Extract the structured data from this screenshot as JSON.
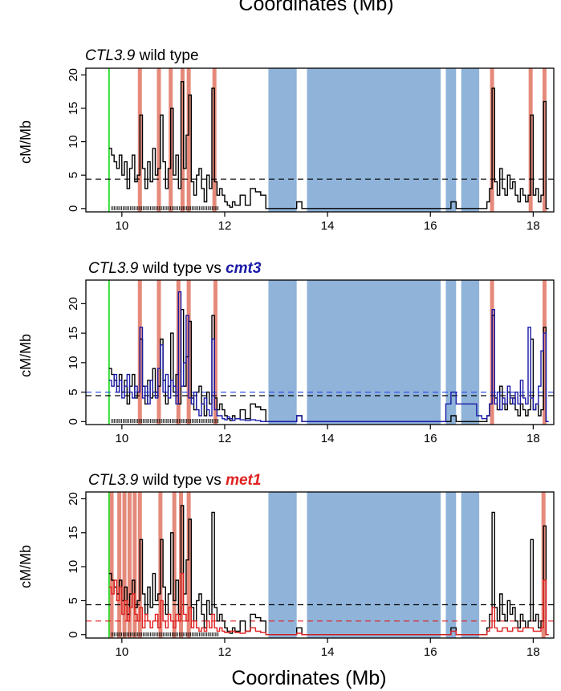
{
  "figure": {
    "top_title": "Coordinates (Mb)",
    "bottom_title": "Coordinates (Mb)"
  },
  "colors": {
    "wt": "#000000",
    "cmt3": "#1a1aa8",
    "met1": "#e02020",
    "hotspot": "#e58a7b",
    "centromere": "#8fb3d9",
    "start_marker": "#33dd33",
    "panel2_mean_line": "#3355ee",
    "panel3_mean_line": "#e02020"
  },
  "chart_data": [
    {
      "type": "line",
      "panel": "wild-type",
      "title_italic": "CTL3.9",
      "title_rest": " wild type",
      "title_variant": "",
      "variant_color_key": "",
      "xlabel": "",
      "ylabel": "cM/Mb",
      "xlim": [
        9.3,
        18.4
      ],
      "ylim": [
        -0.5,
        21
      ],
      "xticks": [
        10,
        12,
        14,
        16,
        18
      ],
      "yticks": [
        0,
        5,
        10,
        15,
        20
      ],
      "start_marker_x": 9.75,
      "mean_lines": [
        {
          "value": 4.4,
          "color_key": "wt"
        }
      ],
      "centromere_blocks": [
        [
          12.85,
          13.4
        ],
        [
          13.6,
          16.2
        ],
        [
          16.3,
          16.5
        ],
        [
          16.6,
          16.95
        ]
      ],
      "hotspots": [
        10.35,
        10.72,
        10.95,
        11.18,
        11.3,
        11.8,
        17.2,
        17.95,
        18.22
      ],
      "series": [
        {
          "name": "wild type",
          "color_key": "wt",
          "x": [
            9.75,
            9.8,
            9.85,
            9.9,
            9.95,
            10.0,
            10.05,
            10.1,
            10.15,
            10.2,
            10.25,
            10.3,
            10.35,
            10.4,
            10.45,
            10.5,
            10.55,
            10.6,
            10.65,
            10.7,
            10.75,
            10.8,
            10.85,
            10.9,
            10.95,
            11.0,
            11.05,
            11.1,
            11.15,
            11.2,
            11.25,
            11.3,
            11.35,
            11.4,
            11.45,
            11.5,
            11.55,
            11.6,
            11.65,
            11.7,
            11.75,
            11.8,
            11.85,
            11.9,
            11.95,
            12.0,
            12.05,
            12.1,
            12.15,
            12.2,
            12.3,
            12.4,
            12.5,
            12.6,
            12.7,
            12.8,
            13.4,
            13.5,
            13.6,
            16.2,
            16.4,
            16.5,
            16.9,
            17.0,
            17.1,
            17.15,
            17.2,
            17.25,
            17.3,
            17.35,
            17.4,
            17.45,
            17.5,
            17.55,
            17.6,
            17.65,
            17.7,
            17.75,
            17.8,
            17.85,
            17.9,
            17.95,
            18.0,
            18.05,
            18.1,
            18.15,
            18.2,
            18.25
          ],
          "values": [
            9,
            8,
            7,
            6,
            8,
            5,
            7,
            3,
            6,
            8,
            4,
            5,
            14,
            6,
            3,
            7,
            4,
            9,
            5,
            6,
            14,
            7,
            3,
            6,
            15,
            5,
            8,
            3,
            19,
            6,
            11,
            17,
            4,
            2,
            5,
            6,
            3,
            1,
            5,
            3,
            18,
            4,
            2,
            3,
            2,
            1,
            0.5,
            0.2,
            1,
            0.5,
            2,
            0.5,
            3,
            2.5,
            2,
            0,
            1,
            0,
            0,
            0,
            1,
            0,
            0,
            0,
            1,
            3,
            18,
            4,
            2,
            6,
            3,
            2,
            5,
            3,
            4,
            2,
            1,
            3,
            2,
            1,
            2,
            14,
            2,
            3,
            1,
            2,
            16,
            0
          ]
        }
      ]
    },
    {
      "type": "line",
      "panel": "wild-type-vs-cmt3",
      "title_italic": "CTL3.9",
      "title_rest": " wild type vs ",
      "title_variant": "cmt3",
      "variant_color_key": "cmt3",
      "xlabel": "",
      "ylabel": "cM/Mb",
      "xlim": [
        9.3,
        18.4
      ],
      "ylim": [
        -0.5,
        24
      ],
      "xticks": [
        10,
        12,
        14,
        16,
        18
      ],
      "yticks": [
        0,
        5,
        10,
        15,
        20
      ],
      "start_marker_x": 9.75,
      "mean_lines": [
        {
          "value": 4.4,
          "color_key": "wt"
        },
        {
          "value": 5.0,
          "color_key": "panel2_mean_line"
        }
      ],
      "centromere_blocks": [
        [
          12.85,
          13.4
        ],
        [
          13.6,
          16.2
        ],
        [
          16.3,
          16.5
        ],
        [
          16.6,
          16.95
        ]
      ],
      "hotspots": [
        10.35,
        10.72,
        11.1,
        11.3,
        11.82,
        17.2,
        18.22
      ],
      "series": [
        {
          "name": "wild type",
          "color_key": "wt",
          "x": [
            9.75,
            9.8,
            9.85,
            9.9,
            9.95,
            10.0,
            10.05,
            10.1,
            10.15,
            10.2,
            10.25,
            10.3,
            10.35,
            10.4,
            10.45,
            10.5,
            10.55,
            10.6,
            10.65,
            10.7,
            10.75,
            10.8,
            10.85,
            10.9,
            10.95,
            11.0,
            11.05,
            11.1,
            11.15,
            11.2,
            11.25,
            11.3,
            11.35,
            11.4,
            11.45,
            11.5,
            11.55,
            11.6,
            11.65,
            11.7,
            11.75,
            11.8,
            11.85,
            11.9,
            11.95,
            12.0,
            12.05,
            12.1,
            12.15,
            12.2,
            12.3,
            12.4,
            12.5,
            12.6,
            12.7,
            12.8,
            13.4,
            13.5,
            13.6,
            16.2,
            16.4,
            16.5,
            16.9,
            17.0,
            17.1,
            17.15,
            17.2,
            17.25,
            17.3,
            17.35,
            17.4,
            17.45,
            17.5,
            17.55,
            17.6,
            17.65,
            17.7,
            17.75,
            17.8,
            17.85,
            17.9,
            17.95,
            18.0,
            18.05,
            18.1,
            18.15,
            18.2,
            18.25
          ],
          "values": [
            9,
            8,
            7,
            6,
            8,
            5,
            7,
            3,
            6,
            8,
            4,
            5,
            14,
            6,
            3,
            7,
            4,
            9,
            5,
            6,
            14,
            7,
            3,
            6,
            15,
            5,
            8,
            3,
            19,
            6,
            11,
            17,
            4,
            2,
            5,
            6,
            3,
            1,
            5,
            3,
            18,
            4,
            2,
            3,
            2,
            1,
            0.5,
            0.2,
            1,
            0.5,
            2,
            0.5,
            3,
            2.5,
            2,
            0,
            1,
            0,
            0,
            0,
            1,
            0,
            0,
            0,
            1,
            3,
            18,
            4,
            2,
            6,
            3,
            2,
            5,
            3,
            4,
            2,
            1,
            3,
            2,
            1,
            2,
            14,
            2,
            3,
            1,
            2,
            16,
            0
          ]
        },
        {
          "name": "cmt3",
          "color_key": "cmt3",
          "x": [
            9.75,
            9.8,
            9.85,
            9.9,
            9.95,
            10.0,
            10.05,
            10.1,
            10.15,
            10.2,
            10.25,
            10.3,
            10.35,
            10.4,
            10.45,
            10.5,
            10.55,
            10.6,
            10.65,
            10.7,
            10.75,
            10.8,
            10.85,
            10.9,
            10.95,
            11.0,
            11.05,
            11.1,
            11.15,
            11.2,
            11.25,
            11.3,
            11.35,
            11.4,
            11.45,
            11.5,
            11.55,
            11.6,
            11.65,
            11.7,
            11.75,
            11.8,
            11.85,
            11.9,
            11.95,
            12.0,
            12.05,
            12.1,
            12.15,
            12.2,
            12.3,
            12.4,
            12.5,
            12.6,
            12.7,
            12.8,
            13.4,
            13.5,
            13.6,
            16.2,
            16.3,
            16.4,
            16.5,
            16.9,
            17.0,
            17.1,
            17.15,
            17.2,
            17.25,
            17.3,
            17.35,
            17.4,
            17.45,
            17.5,
            17.55,
            17.6,
            17.65,
            17.7,
            17.75,
            17.8,
            17.85,
            17.9,
            17.95,
            18.0,
            18.05,
            18.1,
            18.15,
            18.2,
            18.25
          ],
          "values": [
            7,
            6,
            8,
            5,
            7,
            4,
            6,
            8,
            5,
            4,
            6,
            5,
            16,
            4,
            6,
            3,
            7,
            5,
            4,
            9,
            13,
            5,
            8,
            4,
            7,
            6,
            3,
            22,
            6,
            10,
            18,
            4,
            3,
            5,
            2,
            1,
            3,
            4,
            2,
            1,
            14,
            2,
            1,
            1,
            0.5,
            0.3,
            0.8,
            0.5,
            0.2,
            0.5,
            0.3,
            0.2,
            0.3,
            0.2,
            0,
            0,
            1,
            0,
            0,
            0,
            3,
            5,
            3,
            1,
            0.5,
            1,
            3,
            19,
            3,
            5,
            2,
            4,
            3,
            6,
            4,
            3,
            5,
            3,
            7,
            4,
            3,
            16,
            4,
            2,
            3,
            6,
            12,
            15,
            0
          ]
        }
      ]
    },
    {
      "type": "line",
      "panel": "wild-type-vs-met1",
      "title_italic": "CTL3.9",
      "title_rest": " wild type vs ",
      "title_variant": "met1",
      "variant_color_key": "met1",
      "xlabel": "Coordinates (Mb)",
      "ylabel": "cM/Mb",
      "xlim": [
        9.3,
        18.4
      ],
      "ylim": [
        -0.5,
        21
      ],
      "xticks": [
        10,
        12,
        14,
        16,
        18
      ],
      "yticks": [
        0,
        5,
        10,
        15,
        20
      ],
      "start_marker_x": 9.75,
      "mean_lines": [
        {
          "value": 4.4,
          "color_key": "wt"
        },
        {
          "value": 2.0,
          "color_key": "panel3_mean_line"
        }
      ],
      "centromere_blocks": [
        [
          12.85,
          13.4
        ],
        [
          13.6,
          16.2
        ],
        [
          16.3,
          16.5
        ],
        [
          16.6,
          16.95
        ]
      ],
      "hotspots": [
        9.8,
        9.95,
        10.05,
        10.15,
        10.25,
        10.35,
        10.75,
        11.02,
        11.15,
        11.3,
        18.2
      ],
      "series": [
        {
          "name": "wild type",
          "color_key": "wt",
          "x": [
            9.75,
            9.8,
            9.85,
            9.9,
            9.95,
            10.0,
            10.05,
            10.1,
            10.15,
            10.2,
            10.25,
            10.3,
            10.35,
            10.4,
            10.45,
            10.5,
            10.55,
            10.6,
            10.65,
            10.7,
            10.75,
            10.8,
            10.85,
            10.9,
            10.95,
            11.0,
            11.05,
            11.1,
            11.15,
            11.2,
            11.25,
            11.3,
            11.35,
            11.4,
            11.45,
            11.5,
            11.55,
            11.6,
            11.65,
            11.7,
            11.75,
            11.8,
            11.85,
            11.9,
            11.95,
            12.0,
            12.05,
            12.1,
            12.15,
            12.2,
            12.3,
            12.4,
            12.5,
            12.6,
            12.7,
            12.8,
            13.4,
            13.5,
            13.6,
            16.2,
            16.4,
            16.5,
            16.9,
            17.0,
            17.1,
            17.15,
            17.2,
            17.25,
            17.3,
            17.35,
            17.4,
            17.45,
            17.5,
            17.55,
            17.6,
            17.65,
            17.7,
            17.75,
            17.8,
            17.85,
            17.9,
            17.95,
            18.0,
            18.05,
            18.1,
            18.15,
            18.2,
            18.25
          ],
          "values": [
            9,
            8,
            7,
            6,
            8,
            5,
            7,
            3,
            6,
            8,
            4,
            5,
            14,
            6,
            3,
            7,
            4,
            9,
            5,
            6,
            14,
            7,
            3,
            6,
            15,
            5,
            8,
            3,
            19,
            6,
            11,
            17,
            4,
            2,
            5,
            6,
            3,
            1,
            5,
            3,
            18,
            4,
            2,
            3,
            2,
            1,
            0.5,
            0.2,
            1,
            0.5,
            2,
            0.5,
            3,
            2.5,
            2,
            0,
            1,
            0,
            0,
            0,
            1,
            0,
            0,
            0,
            1,
            3,
            18,
            4,
            2,
            6,
            3,
            2,
            5,
            3,
            4,
            2,
            1,
            3,
            2,
            1,
            2,
            14,
            2,
            3,
            1,
            2,
            16,
            0
          ]
        },
        {
          "name": "met1",
          "color_key": "met1",
          "x": [
            9.75,
            9.8,
            9.85,
            9.9,
            9.95,
            10.0,
            10.05,
            10.1,
            10.15,
            10.2,
            10.25,
            10.3,
            10.35,
            10.4,
            10.45,
            10.5,
            10.55,
            10.6,
            10.65,
            10.7,
            10.75,
            10.8,
            10.85,
            10.9,
            10.95,
            11.0,
            11.05,
            11.1,
            11.15,
            11.2,
            11.25,
            11.3,
            11.35,
            11.4,
            11.45,
            11.5,
            11.55,
            11.6,
            11.65,
            11.7,
            11.75,
            11.8,
            11.85,
            11.9,
            11.95,
            12.0,
            12.1,
            12.2,
            12.3,
            12.4,
            12.5,
            12.6,
            12.7,
            12.8,
            13.4,
            13.5,
            13.6,
            16.2,
            16.4,
            16.5,
            16.9,
            17.0,
            17.1,
            17.15,
            17.2,
            17.25,
            17.3,
            17.4,
            17.5,
            17.6,
            17.7,
            17.8,
            17.9,
            18.0,
            18.1,
            18.15,
            18.2,
            18.25
          ],
          "values": [
            7,
            6,
            8,
            5,
            7,
            3,
            5,
            2,
            4,
            6,
            3,
            2,
            4,
            1,
            3,
            2,
            1,
            2,
            3,
            1,
            5,
            2,
            1,
            3,
            2,
            1,
            3,
            2,
            9,
            3,
            2,
            4,
            1,
            2,
            1,
            0.5,
            1,
            0.5,
            2,
            1,
            3,
            1,
            0.5,
            1,
            0.5,
            0.3,
            0.5,
            0.3,
            0.2,
            0.5,
            1,
            0.5,
            0.3,
            0,
            0.2,
            0,
            0,
            0,
            0.5,
            0,
            0,
            0,
            0.5,
            1,
            4,
            1,
            0.5,
            1,
            0.5,
            1,
            0.5,
            1,
            1,
            0.5,
            0.5,
            1,
            8,
            0
          ]
        }
      ]
    }
  ]
}
